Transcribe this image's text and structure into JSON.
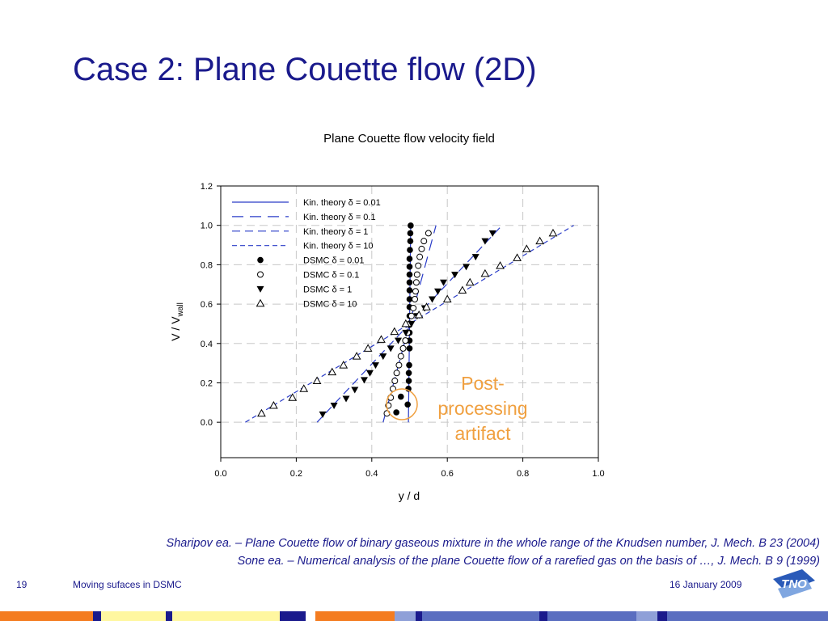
{
  "slide": {
    "title": "Case 2: Plane Couette flow (2D)",
    "annotation_line1": "Post-",
    "annotation_line2": "processing",
    "annotation_line3": "artifact",
    "ref1": "Sharipov ea. – Plane Couette flow of binary gaseous mixture in the whole range of the Knudsen number, J. Mech. B 23 (2004)",
    "ref2": "Sone ea. – Numerical analysis of the plane Couette flow of a rarefied gas on the basis of …, J. Mech. B 9 (1999)",
    "page_number": "19",
    "footer_title": "Moving sufaces in DSMC",
    "date": "16 January 2009",
    "logo_text": "TNO"
  },
  "colors": {
    "title": "#1a1a8c",
    "theory_line": "#2a3cc8",
    "annotation": "#f0a040",
    "grid": "#c8c8c8"
  },
  "chart_data": {
    "type": "scatter",
    "title": "Plane Couette flow velocity field",
    "xlabel": "y / d",
    "ylabel": "V / V",
    "ylabel_sub": "wall",
    "xlim": [
      0.0,
      1.0
    ],
    "ylim": [
      -0.18,
      1.2
    ],
    "xticks": [
      "0.0",
      "0.2",
      "0.4",
      "0.6",
      "0.8",
      "1.0"
    ],
    "yticks": [
      "0.0",
      "0.2",
      "0.4",
      "0.6",
      "0.8",
      "1.0",
      "1.2"
    ],
    "grid": true,
    "legend_position": "top-left",
    "lines": [
      {
        "name": "Kin. theory δ = 0.01",
        "style": "solid",
        "points": [
          [
            0.497,
            0.0
          ],
          [
            0.503,
            1.0
          ]
        ]
      },
      {
        "name": "Kin. theory δ = 0.1",
        "style": "dash-long",
        "points": [
          [
            0.43,
            0.0
          ],
          [
            0.57,
            1.0
          ]
        ]
      },
      {
        "name": "Kin. theory δ = 1",
        "style": "dash-medium",
        "points": [
          [
            0.255,
            0.0
          ],
          [
            0.745,
            1.0
          ]
        ]
      },
      {
        "name": "Kin. theory δ = 10",
        "style": "dash-short",
        "points": [
          [
            0.065,
            0.0
          ],
          [
            0.935,
            1.0
          ]
        ]
      }
    ],
    "series": [
      {
        "name": "DSMC  δ = 0.01",
        "marker": "filled-circle",
        "x": [
          0.465,
          0.477,
          0.495,
          0.497,
          0.498,
          0.498,
          0.499,
          0.5,
          0.5,
          0.5,
          0.5,
          0.5,
          0.5,
          0.5,
          0.5,
          0.5,
          0.5,
          0.5,
          0.5,
          0.501,
          0.502,
          0.502,
          0.503
        ],
        "y": [
          0.05,
          0.13,
          0.09,
          0.17,
          0.21,
          0.25,
          0.29,
          0.375,
          0.415,
          0.455,
          0.495,
          0.54,
          0.585,
          0.625,
          0.67,
          0.71,
          0.75,
          0.79,
          0.83,
          0.875,
          0.92,
          0.96,
          0.999
        ]
      },
      {
        "name": "DSMC  δ = 0.1",
        "marker": "open-circle",
        "x": [
          0.44,
          0.444,
          0.45,
          0.456,
          0.461,
          0.466,
          0.472,
          0.477,
          0.483,
          0.489,
          0.495,
          0.5,
          0.505,
          0.51,
          0.514,
          0.516,
          0.518,
          0.52,
          0.523,
          0.527,
          0.532,
          0.538,
          0.55
        ],
        "y": [
          0.045,
          0.085,
          0.125,
          0.17,
          0.21,
          0.25,
          0.29,
          0.335,
          0.375,
          0.415,
          0.455,
          0.5,
          0.54,
          0.58,
          0.625,
          0.665,
          0.71,
          0.75,
          0.795,
          0.84,
          0.88,
          0.92,
          0.96
        ]
      },
      {
        "name": "DSMC  δ = 1",
        "marker": "filled-triangle-down",
        "x": [
          0.27,
          0.3,
          0.332,
          0.355,
          0.38,
          0.395,
          0.41,
          0.43,
          0.45,
          0.47,
          0.49,
          0.505,
          0.52,
          0.54,
          0.56,
          0.575,
          0.59,
          0.62,
          0.65,
          0.675,
          0.7,
          0.72
        ],
        "y": [
          0.04,
          0.085,
          0.12,
          0.165,
          0.215,
          0.25,
          0.29,
          0.335,
          0.375,
          0.415,
          0.455,
          0.5,
          0.54,
          0.58,
          0.625,
          0.665,
          0.71,
          0.75,
          0.79,
          0.84,
          0.92,
          0.96
        ]
      },
      {
        "name": "DSMC  δ = 10",
        "marker": "open-triangle-up",
        "x": [
          0.108,
          0.14,
          0.19,
          0.22,
          0.255,
          0.295,
          0.325,
          0.36,
          0.39,
          0.425,
          0.46,
          0.49,
          0.525,
          0.545,
          0.6,
          0.64,
          0.66,
          0.7,
          0.74,
          0.785,
          0.81,
          0.845,
          0.88
        ],
        "y": [
          0.045,
          0.085,
          0.125,
          0.17,
          0.21,
          0.255,
          0.29,
          0.335,
          0.375,
          0.42,
          0.46,
          0.5,
          0.545,
          0.585,
          0.625,
          0.67,
          0.71,
          0.755,
          0.795,
          0.835,
          0.88,
          0.92,
          0.96
        ]
      }
    ]
  }
}
